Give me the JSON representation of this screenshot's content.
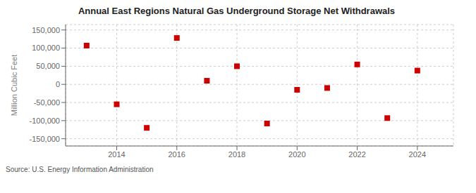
{
  "chart_data": {
    "type": "scatter",
    "title": "Annual East Regions Natural Gas Underground Storage Net Withdrawals",
    "ylabel": "Million Cubic Feet",
    "annotations": [
      "Source: U.S. Energy Information Administration"
    ],
    "x": [
      2013,
      2014,
      2015,
      2016,
      2017,
      2018,
      2019,
      2020,
      2021,
      2022,
      2023,
      2024
    ],
    "values": [
      107000,
      -55000,
      -120000,
      128000,
      10000,
      50000,
      -108000,
      -15000,
      -10000,
      55000,
      -93000,
      38000
    ],
    "color": "#cc0000",
    "marker": "square",
    "xlim": [
      2012.3,
      2025.2
    ],
    "ylim": [
      -170000,
      165000
    ],
    "xticks": [
      2014,
      2016,
      2018,
      2020,
      2022,
      2024
    ],
    "yticks": [
      {
        "value": -150000,
        "label": "-150,000"
      },
      {
        "value": -100000,
        "label": "-100,000"
      },
      {
        "value": -50000,
        "label": "-50,000"
      },
      0,
      {
        "value": 50000,
        "label": "50,000"
      },
      {
        "value": 100000,
        "label": "100,000"
      },
      {
        "value": 150000,
        "label": "150,000"
      }
    ],
    "grid": true
  }
}
